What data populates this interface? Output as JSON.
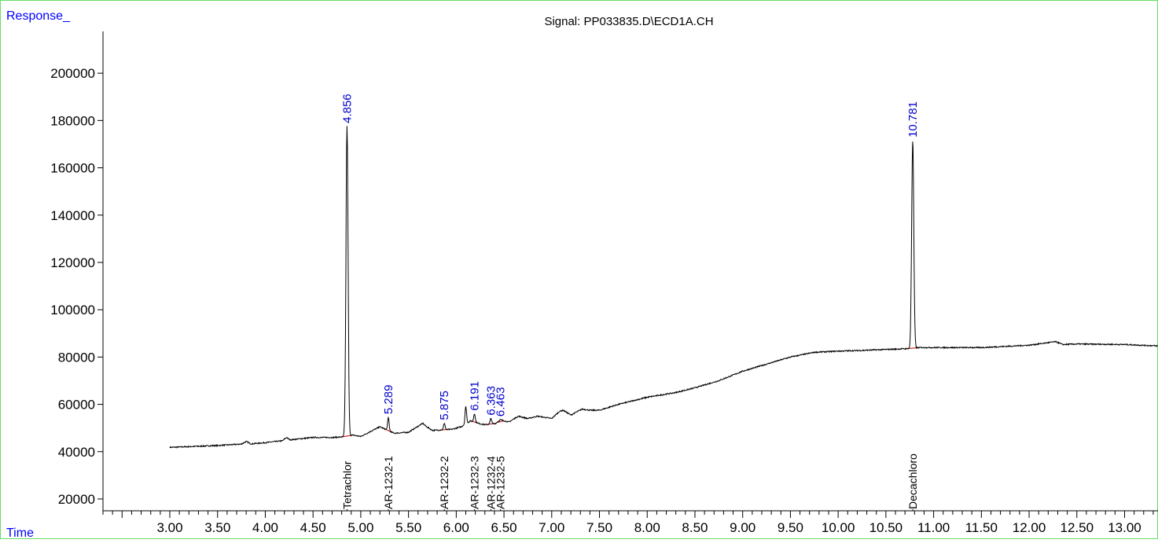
{
  "chart_data": {
    "type": "line",
    "title": "Signal: PP033835.D\\ECD1A.CH",
    "ylabel": "Response_",
    "xlabel": "Time",
    "xlim": [
      2.3,
      13.35
    ],
    "ylim": [
      15000,
      215000
    ],
    "y_ticks": [
      20000,
      40000,
      60000,
      80000,
      100000,
      120000,
      140000,
      160000,
      180000,
      200000
    ],
    "x_ticks": [
      3.0,
      3.5,
      4.0,
      4.5,
      5.0,
      5.5,
      6.0,
      6.5,
      7.0,
      7.5,
      8.0,
      8.5,
      9.0,
      9.5,
      10.0,
      10.5,
      11.0,
      11.5,
      12.0,
      12.5,
      13.0
    ],
    "grid": false,
    "colors": {
      "trace": "#000000",
      "peak_label": "#0000cc",
      "axis_label": "#0000ff",
      "baseline": "#cc0000",
      "frame": "#66dd66"
    },
    "series": [
      {
        "x": [
          3.0,
          3.5,
          3.75,
          3.8,
          3.85,
          4.0,
          4.18,
          4.22,
          4.26,
          4.5,
          4.7,
          4.8,
          4.856,
          4.92,
          5.0,
          5.1,
          5.2,
          5.289,
          5.35,
          5.5,
          5.65,
          5.68,
          5.75,
          5.875,
          5.95,
          6.05,
          6.1,
          6.15,
          6.191,
          6.25,
          6.3,
          6.363,
          6.41,
          6.463,
          6.55,
          6.65,
          6.75,
          6.85,
          7.0,
          7.08,
          7.12,
          7.2,
          7.32,
          7.4,
          7.5,
          7.7,
          8.0,
          8.3,
          8.5,
          8.75,
          9.0,
          9.25,
          9.5,
          9.75,
          10.0,
          10.25,
          10.5,
          10.7,
          10.781,
          10.86,
          11.0,
          11.5,
          12.0,
          12.28,
          12.35,
          12.5,
          13.0,
          13.35
        ],
        "y": [
          41800,
          42600,
          43200,
          44300,
          43300,
          43800,
          44600,
          46000,
          45000,
          46000,
          46000,
          46200,
          177500,
          47000,
          46400,
          48500,
          50500,
          54500,
          47800,
          48200,
          52000,
          50800,
          49000,
          52000,
          49400,
          50500,
          59000,
          53000,
          56000,
          51800,
          51400,
          54000,
          51900,
          53500,
          52500,
          55000,
          54000,
          55000,
          54000,
          57000,
          57500,
          55500,
          58000,
          57500,
          57500,
          60000,
          63000,
          65000,
          67000,
          70000,
          74000,
          77000,
          80000,
          82000,
          82500,
          82800,
          83200,
          83500,
          171500,
          84000,
          84000,
          84000,
          85000,
          86500,
          85300,
          85500,
          85300,
          84700
        ]
      }
    ],
    "peak_labels": [
      {
        "x": 4.856,
        "y": 177500,
        "label": "4.856"
      },
      {
        "x": 5.289,
        "y": 54500,
        "label": "5.289"
      },
      {
        "x": 5.875,
        "y": 52000,
        "label": "5.875"
      },
      {
        "x": 6.191,
        "y": 56000,
        "label": "6.191"
      },
      {
        "x": 6.363,
        "y": 54000,
        "label": "6.363"
      },
      {
        "x": 6.463,
        "y": 53500,
        "label": "6.463"
      },
      {
        "x": 10.781,
        "y": 171500,
        "label": "10.781"
      }
    ],
    "compound_labels": [
      {
        "x": 4.856,
        "label": "Tetrachlor"
      },
      {
        "x": 5.289,
        "label": "AR-1232-1"
      },
      {
        "x": 5.875,
        "label": "AR-1232-2"
      },
      {
        "x": 6.191,
        "label": "AR-1232-3"
      },
      {
        "x": 6.363,
        "label": "AR-1232-4"
      },
      {
        "x": 6.463,
        "label": "AR-1232-5"
      },
      {
        "x": 10.781,
        "label": "Decachloro"
      }
    ]
  }
}
